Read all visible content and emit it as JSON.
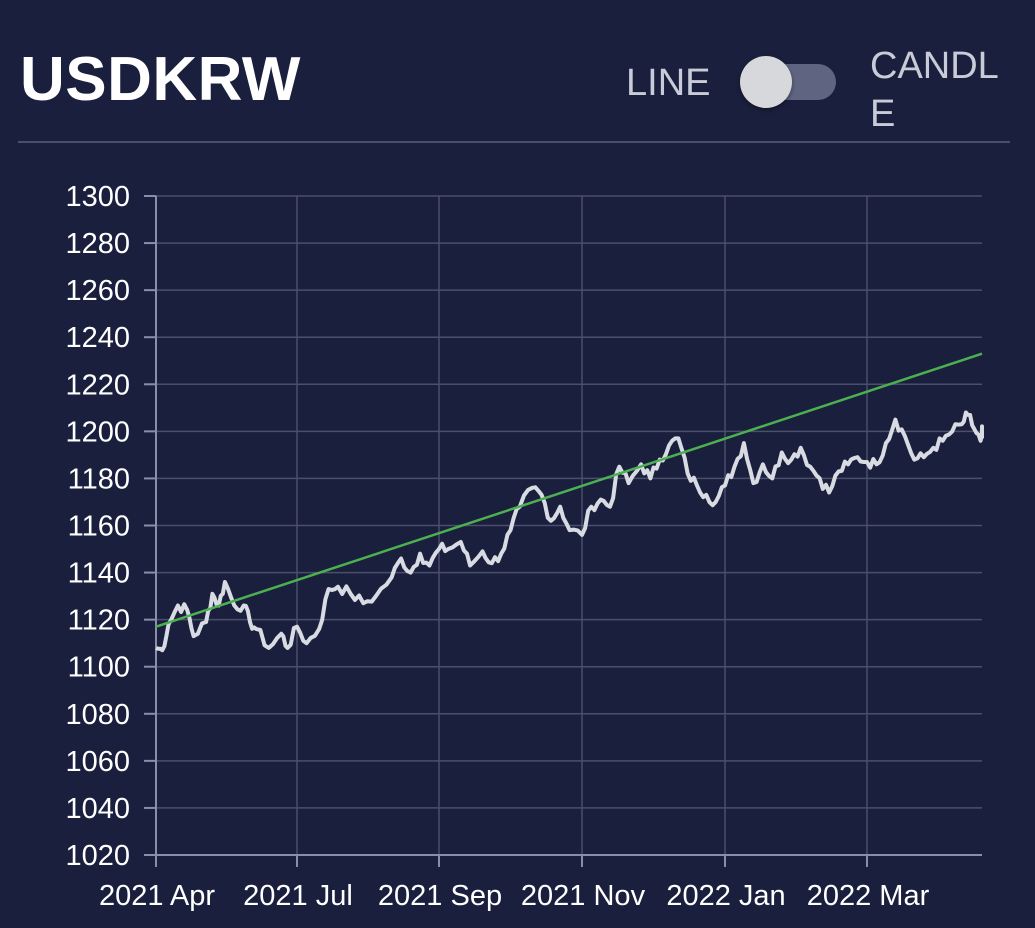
{
  "header": {
    "title": "USDKRW",
    "toggle_left_label": "LINE",
    "toggle_right_label": "CANDLE",
    "toggle_state": "line"
  },
  "colors": {
    "background": "#1a1f3d",
    "price_line": "#d9dbe3",
    "trend_line": "#4caf50",
    "grid": "#4a4f6a"
  },
  "chart_data": {
    "type": "line",
    "x_tick_labels": [
      "2021 Apr",
      "2021 Jul",
      "2021 Sep",
      "2021 Nov",
      "2022 Jan",
      "2022 Mar"
    ],
    "y_ticks": [
      1020,
      1040,
      1060,
      1080,
      1100,
      1120,
      1140,
      1160,
      1180,
      1200,
      1220,
      1240,
      1260,
      1280,
      1300
    ],
    "ylim": [
      1020,
      1300
    ],
    "x_range_months": [
      0,
      13.5
    ],
    "grid": true,
    "series": [
      {
        "x": [
          0,
          0.1,
          0.2,
          0.35,
          0.5,
          0.6,
          0.8,
          0.9,
          1.0,
          1.1,
          1.25,
          1.4,
          1.5,
          1.6,
          1.8,
          2.0,
          2.1,
          2.25,
          2.4,
          2.6,
          2.75,
          2.9,
          3.1,
          3.3,
          3.5,
          3.75,
          3.9,
          4.05,
          4.2,
          4.35,
          4.5,
          4.65,
          4.85,
          5.0,
          5.2,
          5.35,
          5.5,
          5.65,
          5.8,
          6.0,
          6.15,
          6.3,
          6.45,
          6.6,
          6.8,
          6.95,
          7.1,
          7.25,
          7.4,
          7.55,
          7.75,
          7.9,
          8.05,
          8.2,
          8.35,
          8.5,
          8.65,
          8.8,
          8.95,
          9.1,
          9.25,
          9.4,
          9.55,
          9.7,
          9.85,
          10.0,
          10.15,
          10.3,
          10.45,
          10.6,
          10.75,
          10.9,
          11.05,
          11.2,
          11.35,
          11.5,
          11.65,
          11.8,
          11.95,
          12.1,
          12.25,
          12.4,
          12.55,
          12.7,
          12.85,
          12.95,
          13.05,
          13.15,
          13.25,
          13.35,
          13.45
        ],
        "values": [
          1108,
          1107,
          1118,
          1126,
          1124,
          1113,
          1119,
          1131,
          1126,
          1136,
          1126,
          1126,
          1119,
          1116,
          1108,
          1114,
          1108,
          1117,
          1110,
          1116,
          1133,
          1134,
          1131,
          1127,
          1130,
          1138,
          1146,
          1140,
          1148,
          1143,
          1150,
          1150,
          1153,
          1143,
          1149,
          1144,
          1148,
          1158,
          1168,
          1176,
          1173,
          1162,
          1168,
          1158,
          1156,
          1168,
          1171,
          1168,
          1185,
          1178,
          1186,
          1180,
          1188,
          1194,
          1197,
          1182,
          1177,
          1173,
          1170,
          1177,
          1185,
          1195,
          1178,
          1186,
          1180,
          1191,
          1188,
          1193,
          1185,
          1180,
          1174,
          1183,
          1186,
          1189,
          1187,
          1186,
          1195,
          1205,
          1198,
          1188,
          1189,
          1193,
          1196,
          1200,
          1203,
          1207,
          1201,
          1196,
          1199,
          1200,
          1197
        ]
      },
      {
        "x": [
          0,
          13.45
        ],
        "values": [
          1117,
          1233
        ]
      }
    ]
  }
}
